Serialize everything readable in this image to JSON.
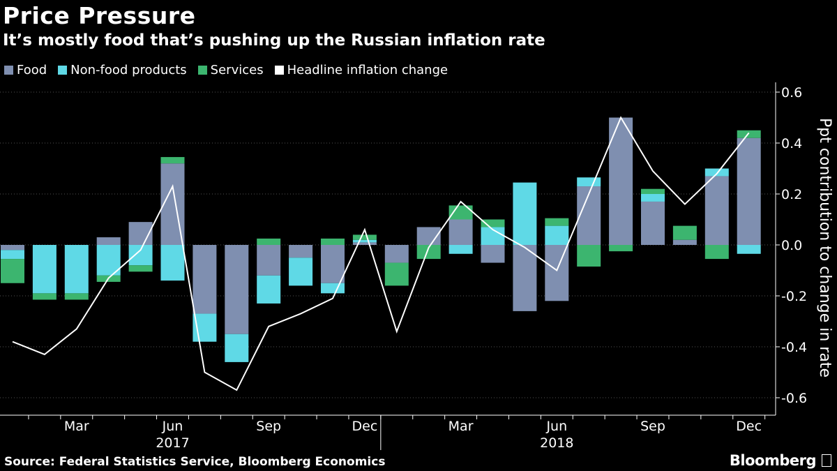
{
  "title": "Price Pressure",
  "subtitle": "It’s mostly food that’s pushing up the Russian inflation rate",
  "source": "Source: Federal Statistics Service, Bloomberg Economics",
  "brand": "Bloomberg",
  "chart_data": {
    "type": "bar",
    "stacked": true,
    "x": [
      "2017-01",
      "2017-02",
      "2017-03",
      "2017-04",
      "2017-05",
      "2017-06",
      "2017-07",
      "2017-08",
      "2017-09",
      "2017-10",
      "2017-11",
      "2017-12",
      "2018-01",
      "2018-02",
      "2018-03",
      "2018-04",
      "2018-05",
      "2018-06",
      "2018-07",
      "2018-08",
      "2018-09",
      "2018-10",
      "2018-11",
      "2018-12"
    ],
    "x_tick_labels": [
      {
        "x": "2017-03",
        "label": "Mar"
      },
      {
        "x": "2017-06",
        "label": "Jun"
      },
      {
        "x": "2017-09",
        "label": "Sep"
      },
      {
        "x": "2017-12",
        "label": "Dec"
      },
      {
        "x": "2018-03",
        "label": "Mar"
      },
      {
        "x": "2018-06",
        "label": "Jun"
      },
      {
        "x": "2018-09",
        "label": "Sep"
      },
      {
        "x": "2018-12",
        "label": "Dec"
      }
    ],
    "year_labels": [
      {
        "x": "2017-06",
        "label": "2017"
      },
      {
        "x": "2018-06",
        "label": "2018"
      }
    ],
    "series": [
      {
        "name": "Food",
        "color": "#7f8fb0",
        "kind": "bar",
        "values": [
          -0.02,
          0.0,
          0.0,
          0.03,
          0.09,
          0.32,
          -0.27,
          -0.35,
          -0.12,
          -0.05,
          -0.15,
          0.01,
          -0.07,
          0.07,
          0.1,
          -0.07,
          -0.26,
          -0.22,
          0.23,
          0.5,
          0.17,
          0.02,
          0.27,
          0.42
        ]
      },
      {
        "name": "Non-food products",
        "color": "#5fd9e6",
        "kind": "bar",
        "values": [
          -0.035,
          -0.19,
          -0.19,
          -0.12,
          -0.08,
          -0.14,
          -0.11,
          -0.11,
          -0.11,
          -0.11,
          -0.04,
          0.01,
          0.0,
          0.0,
          -0.035,
          0.07,
          0.245,
          0.075,
          0.035,
          0.0,
          0.03,
          0.0,
          0.03,
          -0.035
        ]
      },
      {
        "name": "Services",
        "color": "#3cb56f",
        "kind": "bar",
        "values": [
          -0.095,
          -0.025,
          -0.025,
          -0.025,
          -0.025,
          0.025,
          0.0,
          0.0,
          0.025,
          0.0,
          0.025,
          0.02,
          -0.09,
          -0.055,
          0.055,
          0.03,
          0.0,
          0.03,
          -0.085,
          -0.025,
          0.02,
          0.055,
          -0.055,
          0.03
        ]
      },
      {
        "name": "Headline inflation change",
        "color": "#ffffff",
        "kind": "line",
        "values": [
          -0.38,
          -0.43,
          -0.33,
          -0.13,
          -0.02,
          0.23,
          -0.5,
          -0.57,
          -0.32,
          -0.27,
          -0.21,
          0.06,
          -0.34,
          -0.01,
          0.17,
          0.06,
          -0.01,
          -0.1,
          0.2,
          0.5,
          0.29,
          0.16,
          0.28,
          0.44
        ]
      }
    ],
    "ylabel": "Ppt contribution to change in rate",
    "y_ticks": [
      "0.6",
      "0.4",
      "0.2",
      "0.0",
      "-0.2",
      "-0.4",
      "-0.6"
    ],
    "ylim": [
      -0.62,
      0.65
    ],
    "legend_position": "top-left",
    "grid": true
  }
}
